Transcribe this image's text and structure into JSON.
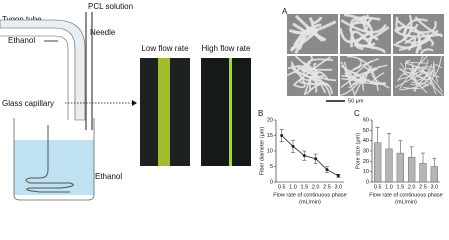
{
  "diagram": {
    "pcl": "PCL solution",
    "tygon": "Tygon tube",
    "needle": "Needle",
    "ethanol_in": "Ethanol",
    "capillary": "Glass capillary",
    "ethanol_bath": "Ethanol",
    "low": "Low flow rate",
    "high": "High flow rate"
  },
  "sem": {
    "panel": "A",
    "scale_bar": "50 μm"
  },
  "chart_data": [
    {
      "type": "line",
      "panel": "B",
      "y_label": "Fiber diameter (μm)",
      "x_label": [
        "Flow rate of continuous phase",
        "(mL/min)"
      ],
      "categories": [
        "0.5",
        "1.0",
        "1.5",
        "2.0",
        "2.5",
        "3.0"
      ],
      "series": [
        {
          "color": "#222222",
          "values": [
            15,
            11.5,
            8.5,
            7.5,
            4,
            2
          ],
          "errors": [
            2,
            2,
            1.5,
            1.5,
            1,
            0.5
          ]
        }
      ],
      "ylim": [
        0,
        20
      ],
      "yticks": [
        0,
        5,
        10,
        15,
        20
      ]
    },
    {
      "type": "bar",
      "panel": "C",
      "y_label": "Pore size (μm)",
      "x_label": [
        "Flow rate of continuous phase",
        "(mL/min)"
      ],
      "categories": [
        "0.5",
        "1.0",
        "1.5",
        "2.0",
        "2.5",
        "3.0"
      ],
      "series": [
        {
          "color": "#b5b5b5",
          "values": [
            38,
            32,
            28,
            24,
            18,
            15
          ],
          "errors": [
            15,
            15,
            12,
            10,
            10,
            8
          ]
        }
      ],
      "ylim": [
        0,
        60
      ],
      "yticks": [
        0,
        10,
        20,
        30,
        40,
        50,
        60
      ]
    }
  ]
}
